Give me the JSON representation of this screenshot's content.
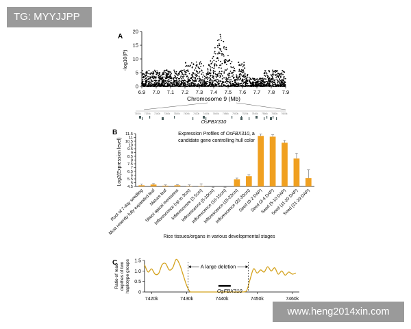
{
  "watermarks": {
    "top_left": "TG: MYYJJPP",
    "bottom_right": "www.heng2014xin.com"
  },
  "chart_data": [
    {
      "panel": "A",
      "type": "scatter",
      "xlabel": "Chromosome 9 (Mb)",
      "ylabel": "-log10(P)",
      "xlim": [
        6.9,
        7.9
      ],
      "ylim": [
        0,
        20
      ],
      "x_ticks": [
        "6.9",
        "7.0",
        "7.1",
        "7.2",
        "7.3",
        "7.4",
        "7.5",
        "7.6",
        "7.7",
        "7.8",
        "7.9"
      ],
      "y_ticks": [
        "0",
        "5",
        "10",
        "15",
        "20"
      ],
      "peak_mb": 7.45,
      "peak_value": 20,
      "gene_label": "OsFBX310",
      "gene_axis_ticks": [
        "7300k",
        "7320k",
        "7340k",
        "7360k",
        "7380k",
        "7400k",
        "7420k",
        "7440k",
        "7460k",
        "7480k",
        "7500k",
        "7520k",
        "7540k",
        "7560k",
        "7580k",
        "7600k"
      ]
    },
    {
      "panel": "B",
      "type": "bar",
      "title_line1_prefix": "Expression Profiles of ",
      "title_gene": "OsFBX310",
      "title_line1_suffix": ", a",
      "title_line2": "candidate gene controlling hull color",
      "ylabel": "Log2(Expression level)",
      "xlabel": "Rice tissues/organs in various developmental stages",
      "ylim": [
        4.5,
        11.5
      ],
      "y_ticks": [
        "4.5",
        "5",
        "5.5",
        "6",
        "6.5",
        "7",
        "7.5",
        "8",
        "8.5",
        "9",
        "9.5",
        "10",
        "10.5",
        "11",
        "11.5"
      ],
      "categories": [
        "Root of 7-day seedling",
        "Most recently fully expanded leaf",
        "Mature leaf",
        "Shoot apical meristems",
        "Inflorescence (up to 3cm)",
        "Inflorescence (3-5cm)",
        "Inflorescence (5-10cm)",
        "Inflorescence (10-15cm)",
        "Inflorescence (15-22cm)",
        "Inflorescence (22-30cm)",
        "Seed (0-2 DAP)",
        "Seed (3-4 DAP)",
        "Seed (5-10 DAP)",
        "Seed (11-20 DAP)",
        "Seed (21-29 DAP)"
      ],
      "values": [
        4.65,
        4.75,
        4.6,
        4.65,
        4.55,
        4.55,
        4.3,
        4.3,
        5.45,
        5.85,
        11.2,
        11.1,
        10.3,
        8.2,
        5.6
      ],
      "errors": [
        0.15,
        0.12,
        0.1,
        0.08,
        0.15,
        0.3,
        0.1,
        0.1,
        0.15,
        0.2,
        0.25,
        0.25,
        0.3,
        0.7,
        1.1
      ],
      "color": "#F0A020"
    },
    {
      "panel": "C",
      "type": "line",
      "ylabel": "Ratio of read depthes of two haplotype groups",
      "ylabel_lines": [
        "Ratio of read",
        "depthes of two",
        "haplotype groups"
      ],
      "xlim": [
        7418,
        7462
      ],
      "ylim": [
        0,
        1.5
      ],
      "x_ticks": [
        "7420k",
        "7430k",
        "7440k",
        "7450k",
        "7460k"
      ],
      "y_ticks": [
        "0",
        "0.5",
        "1.0",
        "1.5"
      ],
      "annotation": "A large deletion",
      "deletion_kb": [
        7430.4,
        7447.5
      ],
      "gene_label": "OsFBX310",
      "gene_kb": [
        7439.0,
        7442.5
      ],
      "color": "#D4A21C",
      "x": [
        7418,
        7419,
        7420,
        7421,
        7422,
        7423,
        7424,
        7425,
        7426,
        7427,
        7428,
        7429,
        7430,
        7431,
        7432,
        7434,
        7436,
        7438,
        7440,
        7442,
        7444,
        7446,
        7447,
        7448,
        7449,
        7450,
        7451,
        7452,
        7453,
        7454,
        7455,
        7456,
        7457,
        7458,
        7459,
        7460,
        7461
      ],
      "y": [
        1.3,
        0.95,
        1.1,
        0.85,
        0.88,
        1.3,
        1.35,
        1.05,
        1.15,
        1.55,
        1.3,
        0.8,
        0.3,
        0.0,
        0.0,
        0.0,
        0.0,
        0.0,
        0.0,
        0.0,
        0.0,
        0.0,
        0.05,
        0.6,
        1.1,
        0.9,
        1.05,
        0.95,
        1.2,
        1.0,
        1.15,
        0.85,
        1.0,
        0.8,
        0.95,
        0.85,
        0.9
      ]
    }
  ]
}
